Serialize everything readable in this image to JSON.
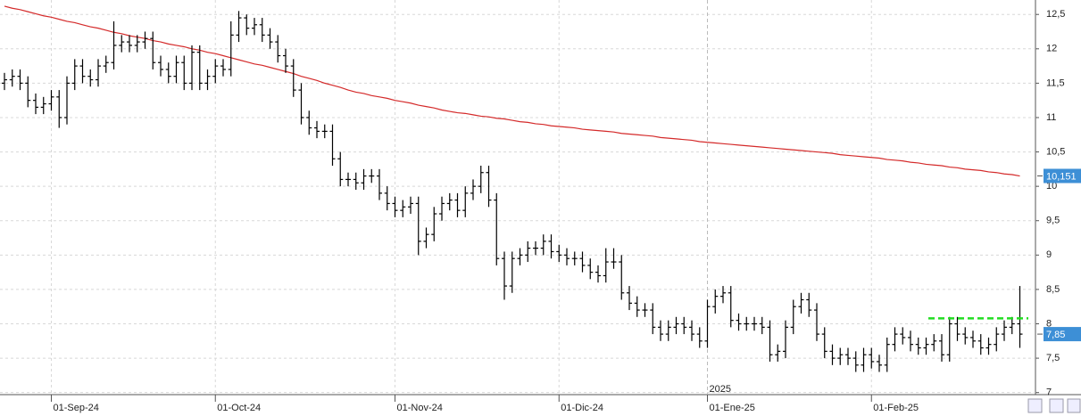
{
  "chart_data": {
    "type": "ohlc",
    "categories": [
      null,
      null,
      null,
      null,
      null,
      null,
      "01-Sep-24",
      null,
      null,
      null,
      null,
      null,
      null,
      null,
      null,
      null,
      null,
      null,
      null,
      null,
      null,
      null,
      null,
      null,
      null,
      null,
      null,
      "01-Oct-24",
      null,
      null,
      null,
      null,
      null,
      null,
      null,
      null,
      null,
      null,
      null,
      null,
      null,
      null,
      null,
      null,
      null,
      null,
      null,
      null,
      null,
      null,
      "01-Nov-24",
      null,
      null,
      null,
      null,
      null,
      null,
      null,
      null,
      null,
      null,
      null,
      null,
      null,
      null,
      null,
      null,
      null,
      null,
      null,
      null,
      "01-Dic-24",
      null,
      null,
      null,
      null,
      null,
      null,
      null,
      null,
      null,
      null,
      null,
      null,
      null,
      null,
      null,
      null,
      null,
      null,
      "01-Ene-25",
      null,
      null,
      null,
      null,
      null,
      null,
      null,
      null,
      null,
      null,
      null,
      null,
      null,
      null,
      null,
      null,
      null,
      null,
      null,
      null,
      "01-Feb-25",
      null,
      null,
      null,
      null,
      null,
      null,
      null,
      null,
      null,
      null,
      null,
      null,
      null,
      null,
      null,
      null,
      null,
      null,
      null
    ],
    "open": [
      11.5,
      11.55,
      11.6,
      11.5,
      11.25,
      11.15,
      11.2,
      11.3,
      11.0,
      11.5,
      11.75,
      11.6,
      11.55,
      11.75,
      11.8,
      12.05,
      12.1,
      12.05,
      12.1,
      12.15,
      11.8,
      11.7,
      11.6,
      11.8,
      11.5,
      11.95,
      11.5,
      11.6,
      11.75,
      11.7,
      12.2,
      12.45,
      12.3,
      12.35,
      12.2,
      12.1,
      11.9,
      11.75,
      11.4,
      11.0,
      10.85,
      10.8,
      10.8,
      10.4,
      10.1,
      10.1,
      10.05,
      10.15,
      10.15,
      9.9,
      9.75,
      9.65,
      9.7,
      9.75,
      9.2,
      9.3,
      9.6,
      9.75,
      9.8,
      9.65,
      9.9,
      10.0,
      10.2,
      9.8,
      8.95,
      8.55,
      8.95,
      9.0,
      9.1,
      9.1,
      9.2,
      9.05,
      9.0,
      8.95,
      8.95,
      8.85,
      8.75,
      8.7,
      8.9,
      8.9,
      8.45,
      8.3,
      8.2,
      8.2,
      7.95,
      7.85,
      7.95,
      8.0,
      7.95,
      7.85,
      7.75,
      8.25,
      8.4,
      8.45,
      8.05,
      8.0,
      8.0,
      8.0,
      7.95,
      7.55,
      7.6,
      7.95,
      8.25,
      8.35,
      8.2,
      7.85,
      7.6,
      7.5,
      7.55,
      7.5,
      7.4,
      7.55,
      7.45,
      7.4,
      7.7,
      7.85,
      7.8,
      7.7,
      7.65,
      7.7,
      7.75,
      7.55,
      8.0,
      7.85,
      7.8,
      7.75,
      7.65,
      7.7,
      7.85,
      7.95,
      8.0
    ],
    "high": [
      11.65,
      11.7,
      11.7,
      11.6,
      11.35,
      11.3,
      11.4,
      11.4,
      11.6,
      11.85,
      11.85,
      11.7,
      11.85,
      11.9,
      12.4,
      12.2,
      12.2,
      12.2,
      12.25,
      12.25,
      11.9,
      11.8,
      11.9,
      11.9,
      12.05,
      12.05,
      11.7,
      11.85,
      11.85,
      12.4,
      12.55,
      12.5,
      12.45,
      12.45,
      12.3,
      12.2,
      12.0,
      11.85,
      11.5,
      11.1,
      10.95,
      10.9,
      10.9,
      10.5,
      10.2,
      10.2,
      10.25,
      10.25,
      10.25,
      10.0,
      9.85,
      9.8,
      9.85,
      9.85,
      9.4,
      9.7,
      9.85,
      9.9,
      9.9,
      10.0,
      10.1,
      10.3,
      10.3,
      9.9,
      9.05,
      9.05,
      9.1,
      9.2,
      9.2,
      9.3,
      9.3,
      9.15,
      9.1,
      9.05,
      9.05,
      8.95,
      8.85,
      9.1,
      9.1,
      9.0,
      8.55,
      8.4,
      8.3,
      8.3,
      8.05,
      8.05,
      8.1,
      8.1,
      8.05,
      7.95,
      8.35,
      8.5,
      8.55,
      8.55,
      8.15,
      8.1,
      8.1,
      8.1,
      8.05,
      7.7,
      8.05,
      8.35,
      8.45,
      8.45,
      8.3,
      7.95,
      7.7,
      7.65,
      7.65,
      7.6,
      7.65,
      7.65,
      7.55,
      7.8,
      7.95,
      7.95,
      7.9,
      7.8,
      7.8,
      7.85,
      7.85,
      8.1,
      8.1,
      7.95,
      7.9,
      7.85,
      7.8,
      7.95,
      8.05,
      8.1,
      8.55
    ],
    "low": [
      11.4,
      11.45,
      11.4,
      11.15,
      11.05,
      11.05,
      11.1,
      10.85,
      10.9,
      11.4,
      11.5,
      11.45,
      11.45,
      11.65,
      11.7,
      11.95,
      11.95,
      11.95,
      12.0,
      11.7,
      11.6,
      11.5,
      11.5,
      11.4,
      11.4,
      11.4,
      11.4,
      11.5,
      11.6,
      11.6,
      12.1,
      12.2,
      12.2,
      12.1,
      12.0,
      11.8,
      11.65,
      11.3,
      10.9,
      10.75,
      10.7,
      10.7,
      10.3,
      10.0,
      10.0,
      9.95,
      9.95,
      10.05,
      9.8,
      9.65,
      9.55,
      9.55,
      9.6,
      9.0,
      9.1,
      9.2,
      9.5,
      9.65,
      9.55,
      9.55,
      9.8,
      9.9,
      9.7,
      8.85,
      8.35,
      8.45,
      8.85,
      8.9,
      9.0,
      9.0,
      8.95,
      8.9,
      8.85,
      8.85,
      8.75,
      8.65,
      8.6,
      8.6,
      8.8,
      8.35,
      8.2,
      8.1,
      8.1,
      7.85,
      7.75,
      7.75,
      7.85,
      7.85,
      7.75,
      7.65,
      7.65,
      8.15,
      8.3,
      7.95,
      7.9,
      7.9,
      7.9,
      7.85,
      7.45,
      7.45,
      7.5,
      7.85,
      8.15,
      8.1,
      7.75,
      7.5,
      7.4,
      7.4,
      7.4,
      7.3,
      7.3,
      7.35,
      7.3,
      7.3,
      7.6,
      7.7,
      7.6,
      7.55,
      7.55,
      7.6,
      7.45,
      7.45,
      7.75,
      7.7,
      7.65,
      7.55,
      7.55,
      7.6,
      7.75,
      7.85,
      7.65
    ],
    "close": [
      11.55,
      11.6,
      11.5,
      11.25,
      11.15,
      11.2,
      11.3,
      11.0,
      11.5,
      11.75,
      11.6,
      11.55,
      11.75,
      11.8,
      12.05,
      12.1,
      12.05,
      12.1,
      12.15,
      11.8,
      11.7,
      11.6,
      11.8,
      11.5,
      11.95,
      11.5,
      11.6,
      11.75,
      11.7,
      12.2,
      12.45,
      12.3,
      12.35,
      12.2,
      12.1,
      11.9,
      11.75,
      11.4,
      11.0,
      10.85,
      10.8,
      10.8,
      10.4,
      10.1,
      10.1,
      10.05,
      10.15,
      10.15,
      9.9,
      9.75,
      9.65,
      9.7,
      9.75,
      9.2,
      9.3,
      9.6,
      9.75,
      9.8,
      9.65,
      9.9,
      10.0,
      10.2,
      9.8,
      8.95,
      8.55,
      8.95,
      9.0,
      9.1,
      9.1,
      9.2,
      9.05,
      9.0,
      8.95,
      8.95,
      8.85,
      8.75,
      8.7,
      8.9,
      8.9,
      8.45,
      8.3,
      8.2,
      8.2,
      7.95,
      7.85,
      7.95,
      8.0,
      7.95,
      7.85,
      7.75,
      8.25,
      8.4,
      8.45,
      8.05,
      8.0,
      8.0,
      8.0,
      7.95,
      7.55,
      7.6,
      7.95,
      8.25,
      8.35,
      8.2,
      7.85,
      7.6,
      7.5,
      7.55,
      7.5,
      7.4,
      7.55,
      7.45,
      7.4,
      7.7,
      7.85,
      7.8,
      7.7,
      7.65,
      7.7,
      7.75,
      7.55,
      8.0,
      7.85,
      7.8,
      7.75,
      7.65,
      7.7,
      7.85,
      7.95,
      8.0,
      7.85
    ],
    "bar_color": "#000000",
    "moving_average": {
      "color": "#d42a2a",
      "values": [
        12.62,
        12.59,
        12.57,
        12.54,
        12.51,
        12.48,
        12.46,
        12.43,
        12.4,
        12.38,
        12.35,
        12.32,
        12.3,
        12.27,
        12.24,
        12.22,
        12.19,
        12.17,
        12.15,
        12.12,
        12.1,
        12.07,
        12.05,
        12.03,
        12.0,
        11.98,
        11.95,
        11.93,
        11.9,
        11.87,
        11.84,
        11.81,
        11.78,
        11.76,
        11.73,
        11.7,
        11.67,
        11.64,
        11.6,
        11.57,
        11.54,
        11.5,
        11.47,
        11.44,
        11.4,
        11.37,
        11.35,
        11.32,
        11.3,
        11.28,
        11.25,
        11.23,
        11.21,
        11.18,
        11.16,
        11.14,
        11.11,
        11.09,
        11.07,
        11.06,
        11.04,
        11.02,
        11.01,
        10.99,
        10.98,
        10.96,
        10.94,
        10.93,
        10.91,
        10.9,
        10.88,
        10.87,
        10.86,
        10.85,
        10.83,
        10.82,
        10.81,
        10.8,
        10.79,
        10.77,
        10.76,
        10.75,
        10.74,
        10.73,
        10.71,
        10.7,
        10.69,
        10.68,
        10.67,
        10.65,
        10.64,
        10.63,
        10.62,
        10.61,
        10.6,
        10.59,
        10.58,
        10.57,
        10.56,
        10.55,
        10.54,
        10.53,
        10.52,
        10.51,
        10.5,
        10.49,
        10.48,
        10.46,
        10.45,
        10.44,
        10.43,
        10.42,
        10.41,
        10.39,
        10.38,
        10.37,
        10.35,
        10.34,
        10.32,
        10.31,
        10.3,
        10.28,
        10.27,
        10.25,
        10.24,
        10.23,
        10.21,
        10.2,
        10.18,
        10.17,
        10.15
      ]
    },
    "levels": [
      {
        "value": 8.08,
        "color": "#22dd22"
      }
    ],
    "price_tags": [
      {
        "value": 10.151,
        "label": "10,151",
        "color": "#3d8fd6"
      },
      {
        "value": 7.85,
        "label": "7,85",
        "color": "#3d8fd6"
      }
    ],
    "year_label": "2025",
    "ylim": [
      6.97,
      12.71
    ],
    "yticks": [
      7,
      {
        "value": 7.5,
        "label": "7,5"
      },
      8,
      {
        "value": 8.5,
        "label": "8,5"
      },
      9,
      {
        "value": 9.5,
        "label": "9,5"
      },
      10,
      {
        "value": 10.5,
        "label": "10,5"
      },
      11,
      {
        "value": 11.5,
        "label": "11,5"
      },
      12,
      {
        "value": 12.5,
        "label": "12,5"
      }
    ],
    "grid": true
  }
}
